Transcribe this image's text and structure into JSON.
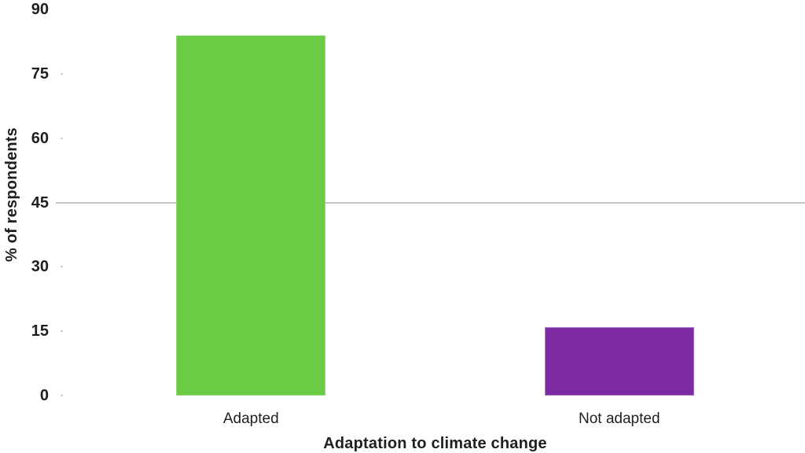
{
  "chart_data": {
    "type": "bar",
    "title": "",
    "xlabel": "Adaptation to climate change",
    "ylabel": "% of respondents",
    "categories": [
      "Adapted",
      "Not adapted"
    ],
    "values": [
      84,
      16
    ],
    "ylim": [
      0,
      90
    ],
    "yticks": [
      0,
      15,
      30,
      45,
      60,
      75,
      90
    ],
    "visible_gridlines": [
      45
    ],
    "bar_colors": [
      "#6bcb45",
      "#7d2ba2"
    ],
    "bar_edge_colors": [
      "#95da79",
      "#a873c2"
    ],
    "gridline_color": "#c6c6c6",
    "text_color": "#1f1f1f",
    "background": "#ffffff",
    "legend_position": "none",
    "grid": "single horizontal line at 45 only"
  }
}
